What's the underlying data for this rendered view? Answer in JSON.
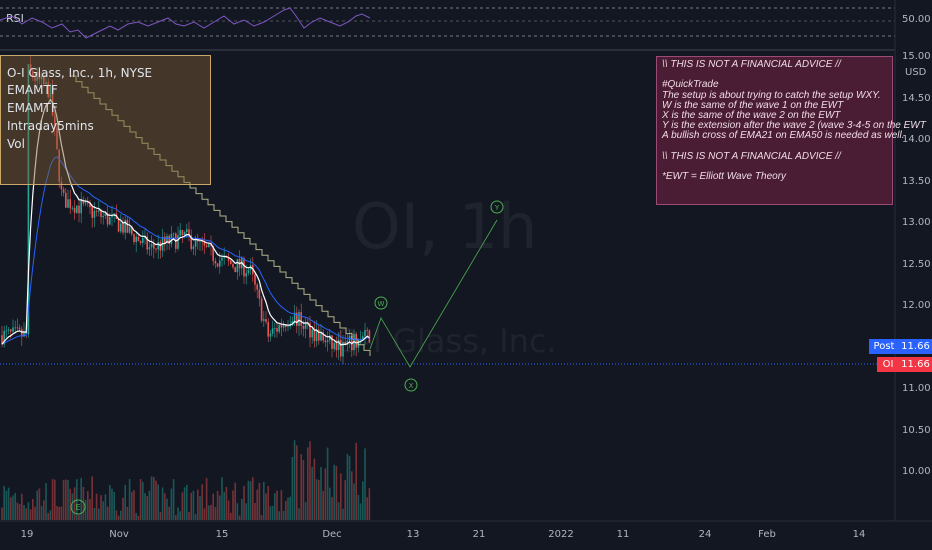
{
  "rsi": {
    "label": "RSI",
    "level_label": "50.00"
  },
  "legend": {
    "symbol_line": "O-I Glass, Inc., 1h, NYSE",
    "lines": [
      "EMAMTF",
      "EMAMTF",
      "Intraday5mins",
      "Vol"
    ]
  },
  "watermark": {
    "ticker": "OI, 1h",
    "name": "O-I Glass, Inc."
  },
  "note": {
    "lines": [
      "\\\\ THIS IS NOT A FINANCIAL ADVICE //",
      "",
      "#QuickTrade",
      "The setup is about trying to catch the setup WXY.",
      "W is the same of the wave 1 on the EWT",
      "X is the same of the wave 2 on the EWT",
      "Y is the extension after the wave 2 (wave 3-4-5 on the EWT",
      "A bullish cross of EMA21 on EMA50 is needed as well.",
      "",
      "\\\\ THIS IS NOT A FINANCIAL ADVICE //",
      "",
      "*EWT = Elliott Wave Theory"
    ]
  },
  "price_axis": {
    "currency": "USD",
    "ticks": [
      "15.00",
      "14.50",
      "14.00",
      "13.50",
      "13.00",
      "12.50",
      "12.00",
      "11.50",
      "11.00",
      "10.50",
      "10.00"
    ]
  },
  "tags": {
    "post_label": "Post",
    "post_value": "11.66",
    "oi_label": "OI",
    "oi_value": "11.66"
  },
  "time_axis": {
    "labels": [
      "19",
      "Nov",
      "15",
      "Dec",
      "13",
      "21",
      "2022",
      "11",
      "24",
      "Feb",
      "14"
    ]
  },
  "waves": {
    "w": "W",
    "x": "X",
    "y": "Y"
  },
  "colors": {
    "background": "#131722",
    "price_line": "#ffffff",
    "ema_slow": "#2962ff",
    "candle_up": "#26a69a",
    "candle_down": "#ef5350",
    "wave": "#4caf50",
    "trendline": "#e8e5a8",
    "post_tag": "#2962ff",
    "oi_tag": "#f23645"
  },
  "chart_data": {
    "type": "line",
    "title": "O-I Glass, Inc., 1h, NYSE",
    "ylim": [
      10.0,
      15.0
    ],
    "x_labels": [
      "19",
      "Nov",
      "15",
      "Dec",
      "13",
      "21",
      "2022",
      "11",
      "24",
      "Feb",
      "14"
    ],
    "series": [
      {
        "name": "OI",
        "x": [
          "Oct 19",
          "Oct 25",
          "Oct 28",
          "Nov 1",
          "Nov 5",
          "Nov 10",
          "Nov 15",
          "Nov 19",
          "Nov 24",
          "Nov 29",
          "Dec 2",
          "Dec 6",
          "Dec 8"
        ],
        "values": [
          14.85,
          14.6,
          13.3,
          13.0,
          12.7,
          12.85,
          12.55,
          12.45,
          11.65,
          11.9,
          11.55,
          11.5,
          11.66
        ]
      }
    ],
    "projection": {
      "W": 11.98,
      "X": 11.62,
      "Y": 13.35
    },
    "last_price": 11.66
  }
}
